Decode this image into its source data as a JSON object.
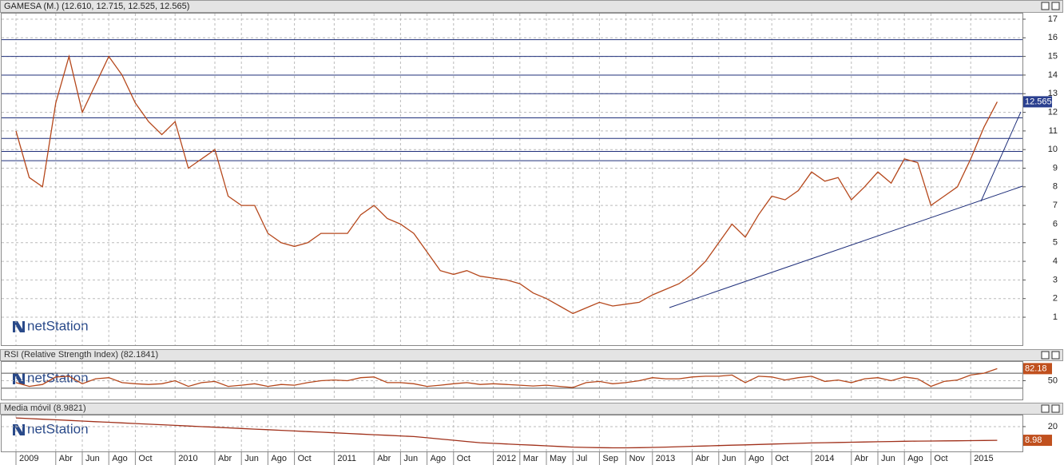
{
  "chart_data": [
    {
      "type": "line",
      "title": "GAMESA (M.) (12.610, 12.715, 12.525, 12.565)",
      "watermark": "netStation",
      "color": "#b5471b",
      "categories": [
        "2009",
        null,
        null,
        "Abr",
        null,
        "Jun",
        null,
        "Ago",
        null,
        "Oct",
        null,
        null,
        "2010",
        null,
        null,
        "Abr",
        null,
        "Jun",
        null,
        "Ago",
        null,
        "Oct",
        null,
        null,
        "2011",
        null,
        null,
        "Abr",
        null,
        "Jun",
        null,
        "Ago",
        null,
        "Oct",
        null,
        null,
        "2012",
        null,
        "Mar",
        null,
        "May",
        null,
        "Jul",
        null,
        "Sep",
        null,
        "Nov",
        null,
        "2013",
        null,
        null,
        "Abr",
        null,
        "Jun",
        null,
        "Ago",
        null,
        "Oct",
        null,
        null,
        "2014",
        null,
        null,
        "Abr",
        null,
        "Jun",
        null,
        "Ago",
        null,
        "Oct",
        null,
        null,
        "2015",
        null,
        null
      ],
      "values": [
        11.0,
        8.5,
        8.0,
        12.5,
        15.0,
        12.0,
        13.5,
        15.0,
        14.0,
        12.5,
        11.5,
        10.8,
        11.5,
        9.0,
        9.5,
        10.0,
        7.5,
        7.0,
        7.0,
        5.5,
        5.0,
        4.8,
        5.0,
        5.5,
        5.5,
        5.5,
        6.5,
        7.0,
        6.3,
        6.0,
        5.5,
        4.5,
        3.5,
        3.3,
        3.5,
        3.2,
        3.1,
        3.0,
        2.8,
        2.3,
        2.0,
        1.6,
        1.2,
        1.5,
        1.8,
        1.6,
        1.7,
        1.8,
        2.2,
        2.5,
        2.8,
        3.3,
        4.0,
        5.0,
        6.0,
        5.3,
        6.5,
        7.5,
        7.3,
        7.8,
        8.8,
        8.3,
        8.5,
        7.3,
        8.0,
        8.8,
        8.2,
        9.5,
        9.3,
        7.0,
        7.5,
        8.0,
        9.5,
        11.2,
        12.565
      ],
      "levels": [
        15.9,
        15.0,
        14.0,
        13.0,
        11.7,
        10.6,
        9.9,
        9.4
      ],
      "ylim": [
        -0.5,
        17.3
      ],
      "yticks": [
        1,
        2,
        3,
        4,
        5,
        6,
        7,
        8,
        9,
        10,
        11,
        12,
        13,
        14,
        15,
        16,
        17
      ],
      "grid": true
    },
    {
      "type": "line",
      "title": "RSI (Relative Strength Index) (82.1841)",
      "watermark": "netStation",
      "color": "#b5471b",
      "values": [
        45,
        35,
        40,
        60,
        62,
        42,
        55,
        58,
        45,
        42,
        40,
        42,
        50,
        35,
        45,
        48,
        35,
        38,
        42,
        35,
        40,
        38,
        45,
        50,
        52,
        50,
        58,
        60,
        45,
        45,
        42,
        35,
        38,
        42,
        45,
        40,
        42,
        40,
        38,
        36,
        38,
        35,
        32,
        45,
        48,
        42,
        45,
        50,
        58,
        55,
        55,
        60,
        62,
        62,
        65,
        45,
        62,
        60,
        52,
        58,
        62,
        48,
        52,
        45,
        55,
        58,
        50,
        60,
        55,
        35,
        48,
        52,
        65,
        70,
        82.1841
      ],
      "last_value_label": "82.18",
      "levels": [
        70,
        30
      ],
      "ylim": [
        0,
        100
      ],
      "yticks": [
        50
      ],
      "grid": true
    },
    {
      "type": "line",
      "title": "Media móvil (8.9821)",
      "watermark": "netStation",
      "color": "#a0301a",
      "values": [
        27,
        26.5,
        26,
        25.5,
        25,
        24.5,
        24,
        23.5,
        23,
        22.5,
        22,
        21.5,
        21,
        20.5,
        20,
        19.5,
        19,
        18.5,
        18,
        17.5,
        17,
        16.5,
        16,
        15.5,
        15,
        14.5,
        14,
        13.5,
        13,
        12.5,
        12,
        11,
        10,
        9,
        8,
        7,
        6.5,
        6,
        5.5,
        5,
        4.5,
        4,
        3.5,
        3.2,
        3,
        2.9,
        2.9,
        3,
        3.2,
        3.5,
        3.8,
        4.1,
        4.4,
        4.7,
        5,
        5.3,
        5.6,
        5.9,
        6.2,
        6.5,
        6.8,
        7,
        7.2,
        7.4,
        7.6,
        7.8,
        8,
        8.2,
        8.3,
        8.4,
        8.5,
        8.6,
        8.7,
        8.85,
        8.9821
      ],
      "last_value_label": "8.98",
      "ylim": [
        0,
        29
      ],
      "yticks": [
        20
      ],
      "grid": true
    }
  ]
}
